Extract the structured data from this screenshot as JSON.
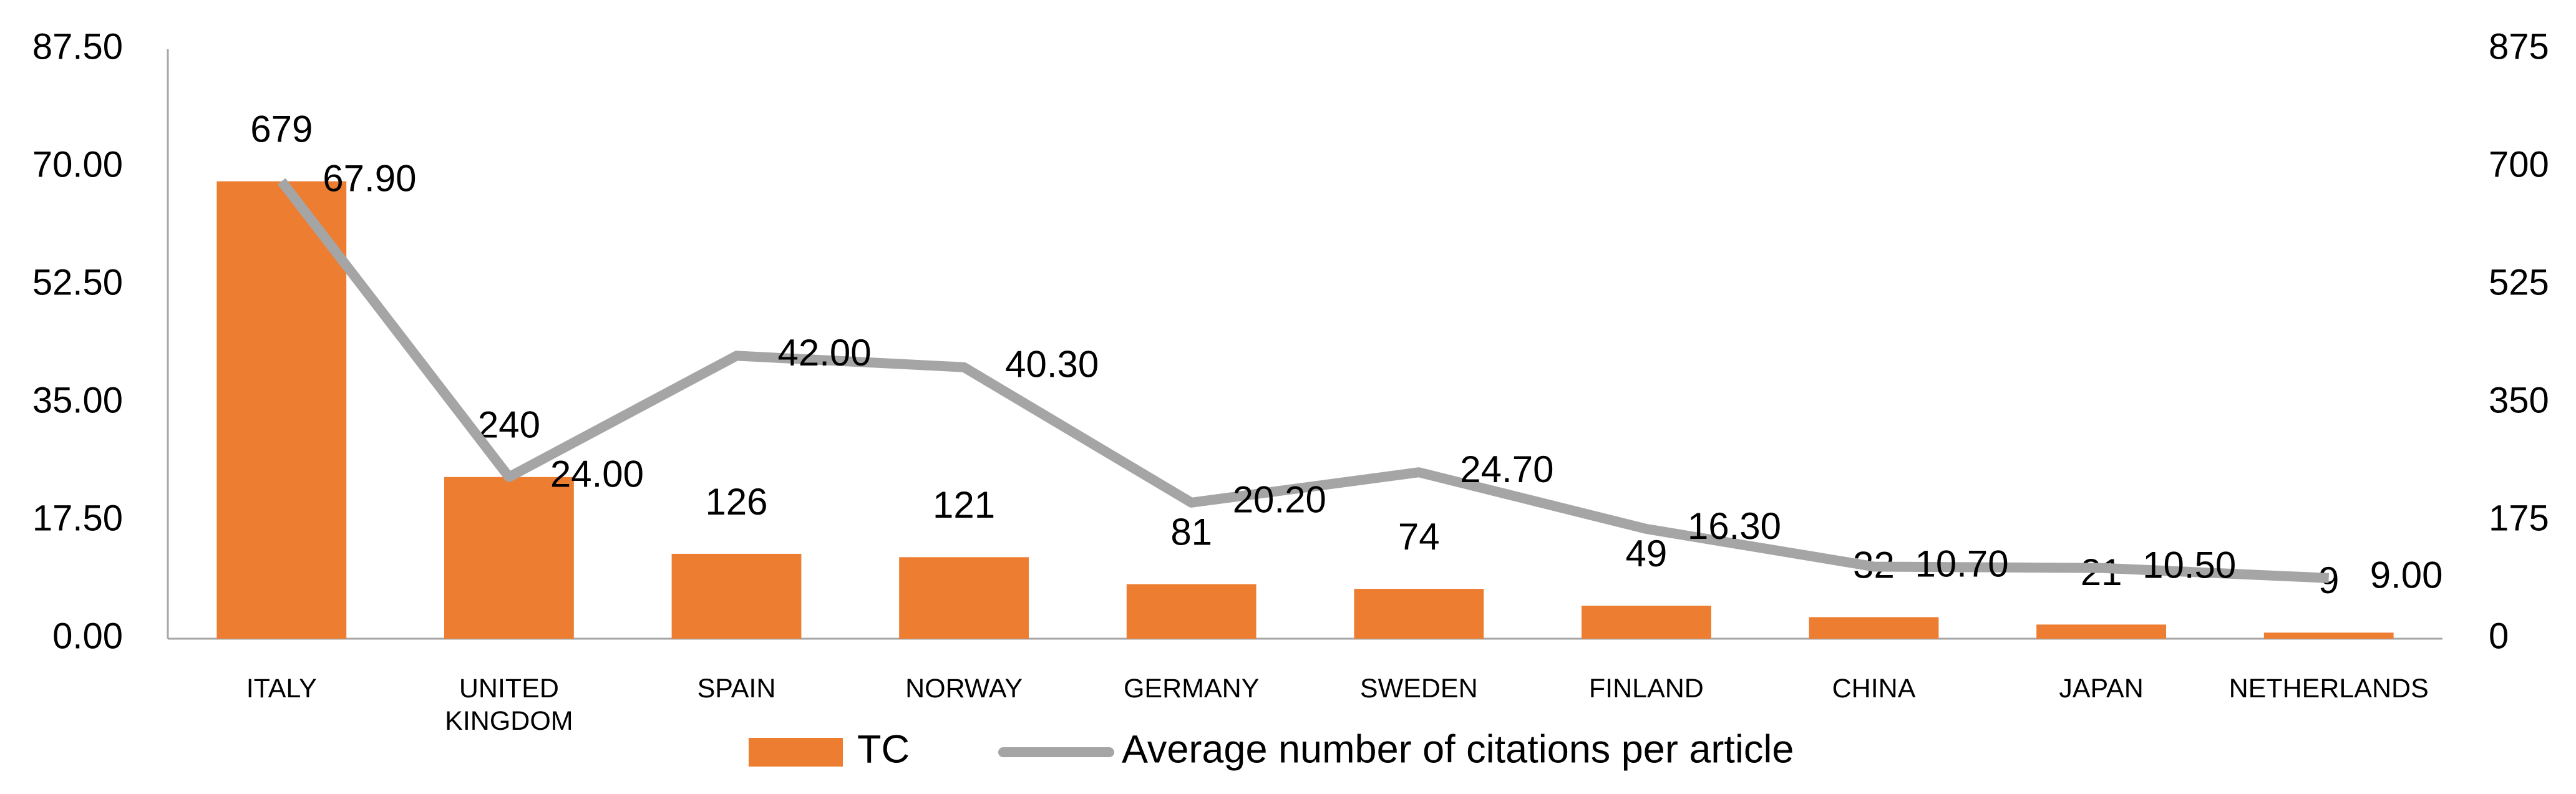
{
  "chart_data": {
    "type": "bar-line",
    "categories": [
      "ITALY",
      "UNITED KINGDOM",
      "SPAIN",
      "NORWAY",
      "GERMANY",
      "SWEDEN",
      "FINLAND",
      "CHINA",
      "JAPAN",
      "NETHERLANDS"
    ],
    "series": [
      {
        "name": "TC",
        "type": "bar",
        "axis": "y2",
        "color": "#ed7d31",
        "values": [
          679,
          240,
          126,
          121,
          81,
          74,
          49,
          32,
          21,
          9
        ]
      },
      {
        "name": "Average number of citations per article",
        "type": "line",
        "axis": "y",
        "color": "#a5a5a5",
        "values": [
          67.9,
          24.0,
          42.0,
          40.3,
          20.2,
          24.7,
          16.3,
          10.7,
          10.5,
          9.0
        ],
        "value_labels": [
          "67.90",
          "24.00",
          "42.00",
          "40.30",
          "20.20",
          "24.70",
          "16.30",
          "10.70",
          "10.50",
          "9.00"
        ]
      }
    ],
    "ylim": [
      0,
      87.5
    ],
    "yticks": [
      {
        "value": 0,
        "label": "0.00"
      },
      {
        "value": 17.5,
        "label": "17.50"
      },
      {
        "value": 35,
        "label": "35.00"
      },
      {
        "value": 52.5,
        "label": "52.50"
      },
      {
        "value": 70,
        "label": "70.00"
      },
      {
        "value": 87.5,
        "label": "87.50"
      }
    ],
    "y2lim": [
      0,
      875
    ],
    "y2ticks": [
      0,
      175,
      350,
      525,
      700,
      875
    ],
    "grid": false,
    "legend": "bottom"
  }
}
